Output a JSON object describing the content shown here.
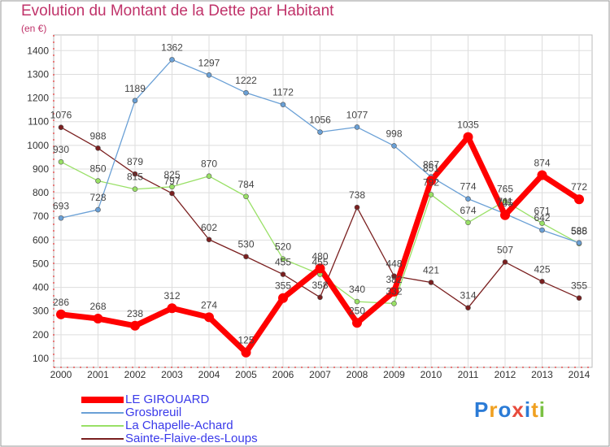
{
  "chart_data": {
    "type": "line",
    "title": "Evolution du Montant de la Dette par Habitant",
    "subtitle": "(en €)",
    "xlabel": "",
    "ylabel": "",
    "categories": [
      "2000",
      "2001",
      "2002",
      "2003",
      "2004",
      "2005",
      "2006",
      "2007",
      "2008",
      "2009",
      "2010",
      "2011",
      "2012",
      "2013",
      "2014"
    ],
    "y_ticks": [
      100,
      200,
      300,
      400,
      500,
      600,
      700,
      800,
      900,
      1000,
      1100,
      1200,
      1300,
      1400
    ],
    "ylim": [
      100,
      1400
    ],
    "grid": true,
    "legend_position": "bottom-left",
    "series": [
      {
        "name": "LE GIROUARD",
        "color": "#ff0000",
        "values": [
          286,
          268,
          238,
          312,
          274,
          125,
          355,
          480,
          250,
          382,
          851,
          1035,
          705,
          874,
          772
        ]
      },
      {
        "name": "Grosbreuil",
        "color": "#6aa0d6",
        "values": [
          693,
          728,
          1189,
          1362,
          1297,
          1222,
          1172,
          1056,
          1077,
          998,
          867,
          774,
          711,
          642,
          588
        ]
      },
      {
        "name": "La Chapelle-Achard",
        "color": "#99e066",
        "values": [
          930,
          850,
          815,
          825,
          870,
          784,
          520,
          455,
          340,
          332,
          792,
          674,
          765,
          671,
          585
        ]
      },
      {
        "name": "Sainte-Flaive-des-Loups",
        "color": "#7a1f1f",
        "values": [
          1076,
          988,
          879,
          797,
          602,
          530,
          455,
          358,
          738,
          448,
          421,
          314,
          507,
          425,
          355
        ]
      }
    ]
  },
  "logo": {
    "text": "Proxiti",
    "letters": [
      "P",
      "r",
      "o",
      "x",
      "i",
      "t",
      "i"
    ],
    "colors": [
      "#2b7bd6",
      "#f0a020",
      "#2b7bd6",
      "#e84b3c",
      "#2b7bd6",
      "#f0a020",
      "#7ac143"
    ]
  }
}
